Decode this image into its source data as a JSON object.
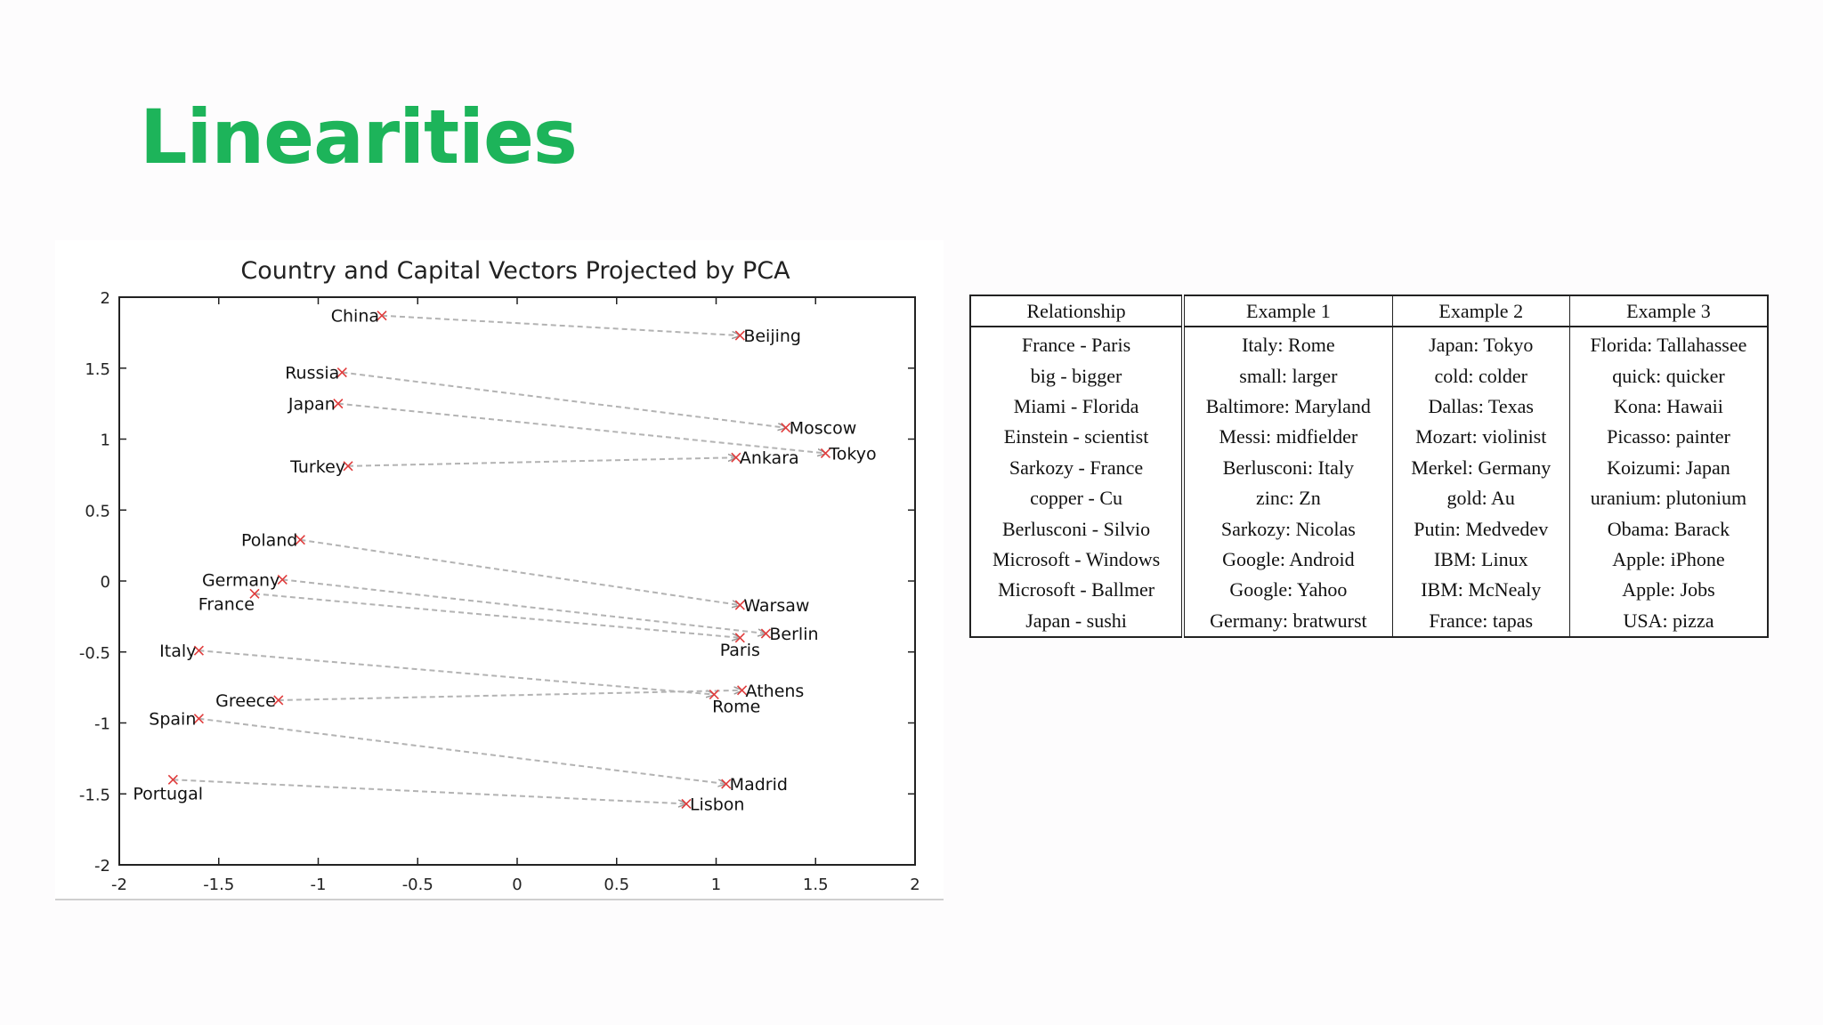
{
  "slide": {
    "title": "Linearities"
  },
  "chart_data": {
    "type": "scatter",
    "title": "Country and Capital Vectors Projected by PCA",
    "xlim": [
      -2,
      2
    ],
    "ylim": [
      -2,
      2
    ],
    "x_ticks": [
      "-2",
      "-1.5",
      "-1",
      "-0.5",
      "0",
      "0.5",
      "1",
      "1.5",
      "2"
    ],
    "y_ticks": [
      "2",
      "1.5",
      "1",
      "0.5",
      "0",
      "-0.5",
      "-1",
      "-1.5",
      "-2"
    ],
    "grid": false,
    "point_color": "#e03c3c",
    "arrow_color": "#b3b3b3",
    "pairs": [
      {
        "country": "China",
        "cx": -0.68,
        "cy": 1.87,
        "capital": "Beijing",
        "kx": 1.12,
        "ky": 1.73
      },
      {
        "country": "Russia",
        "cx": -0.88,
        "cy": 1.47,
        "capital": "Moscow",
        "kx": 1.35,
        "ky": 1.08
      },
      {
        "country": "Japan",
        "cx": -0.9,
        "cy": 1.25,
        "capital": "Tokyo",
        "kx": 1.55,
        "ky": 0.9
      },
      {
        "country": "Turkey",
        "cx": -0.85,
        "cy": 0.81,
        "capital": "Ankara",
        "kx": 1.1,
        "ky": 0.87
      },
      {
        "country": "Poland",
        "cx": -1.09,
        "cy": 0.29,
        "capital": "Warsaw",
        "kx": 1.12,
        "ky": -0.17
      },
      {
        "country": "Germany",
        "cx": -1.18,
        "cy": 0.01,
        "capital": "Berlin",
        "kx": 1.25,
        "ky": -0.37
      },
      {
        "country": "France",
        "cx": -1.32,
        "cy": -0.09,
        "capital": "Paris",
        "kx": 1.12,
        "ky": -0.4
      },
      {
        "country": "Italy",
        "cx": -1.6,
        "cy": -0.49,
        "capital": "Rome",
        "kx": 0.99,
        "ky": -0.8
      },
      {
        "country": "Greece",
        "cx": -1.2,
        "cy": -0.84,
        "capital": "Athens",
        "kx": 1.13,
        "ky": -0.77
      },
      {
        "country": "Spain",
        "cx": -1.6,
        "cy": -0.97,
        "capital": "Madrid",
        "kx": 1.05,
        "ky": -1.43
      },
      {
        "country": "Portugal",
        "cx": -1.73,
        "cy": -1.4,
        "capital": "Lisbon",
        "kx": 0.85,
        "ky": -1.57
      }
    ]
  },
  "table": {
    "headers": [
      "Relationship",
      "Example 1",
      "Example 2",
      "Example 3"
    ],
    "rows": [
      [
        "France - Paris",
        "Italy: Rome",
        "Japan: Tokyo",
        "Florida: Tallahassee"
      ],
      [
        "big - bigger",
        "small: larger",
        "cold: colder",
        "quick: quicker"
      ],
      [
        "Miami - Florida",
        "Baltimore: Maryland",
        "Dallas: Texas",
        "Kona: Hawaii"
      ],
      [
        "Einstein - scientist",
        "Messi: midfielder",
        "Mozart: violinist",
        "Picasso: painter"
      ],
      [
        "Sarkozy - France",
        "Berlusconi: Italy",
        "Merkel: Germany",
        "Koizumi: Japan"
      ],
      [
        "copper - Cu",
        "zinc: Zn",
        "gold: Au",
        "uranium: plutonium"
      ],
      [
        "Berlusconi - Silvio",
        "Sarkozy: Nicolas",
        "Putin: Medvedev",
        "Obama: Barack"
      ],
      [
        "Microsoft - Windows",
        "Google: Android",
        "IBM: Linux",
        "Apple: iPhone"
      ],
      [
        "Microsoft - Ballmer",
        "Google: Yahoo",
        "IBM: McNealy",
        "Apple: Jobs"
      ],
      [
        "Japan - sushi",
        "Germany: bratwurst",
        "France: tapas",
        "USA: pizza"
      ]
    ]
  }
}
